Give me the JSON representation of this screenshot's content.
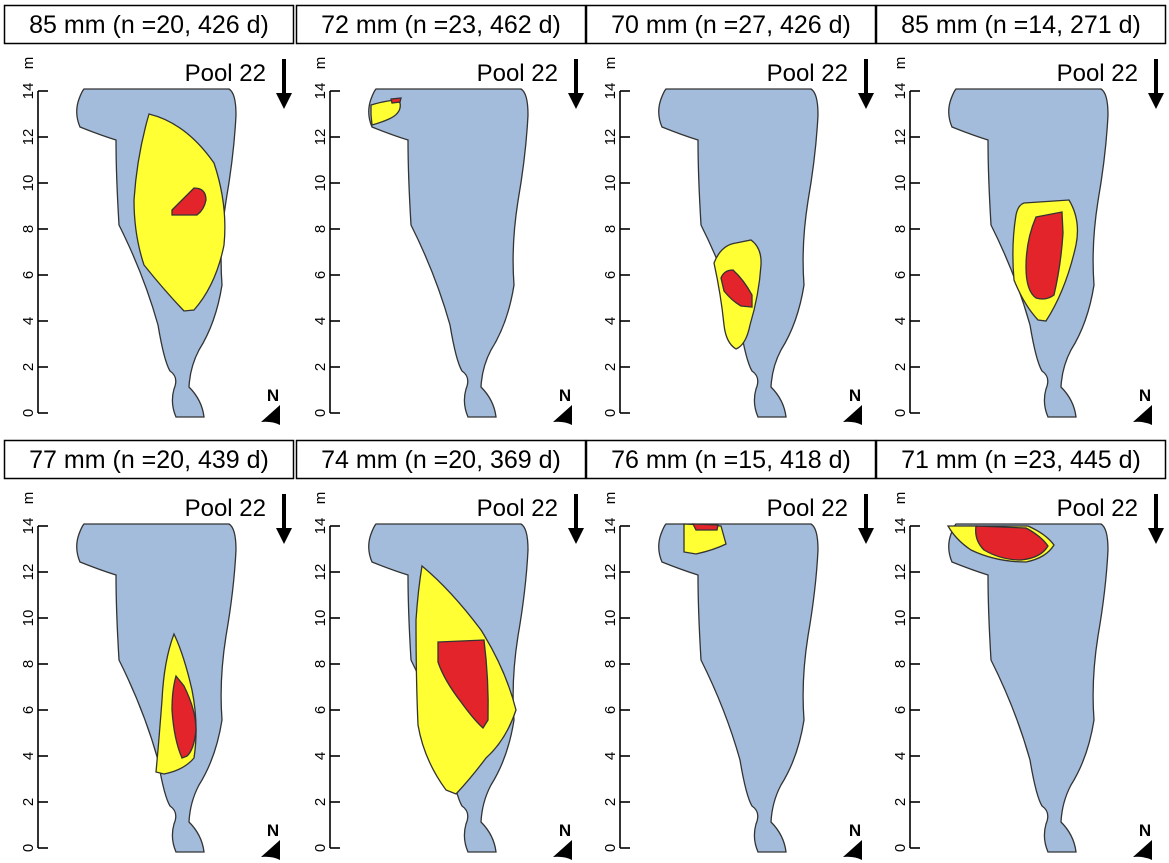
{
  "figure": {
    "y_axis_unit": "m",
    "y_axis_ticks": [
      "0",
      "2",
      "4",
      "6",
      "8",
      "10",
      "12",
      "14"
    ],
    "y_axis_range": [
      0,
      14
    ],
    "north_label": "N",
    "colors": {
      "pool": "#a3bcdb",
      "outer_zone": "#ffff33",
      "core_zone": "#e3242b",
      "outline": "#333333"
    },
    "icons": [
      "flow-direction-arrow-icon",
      "north-arrow-icon"
    ]
  },
  "panels": [
    {
      "caption": "85 mm (n =20, 426 d)",
      "pool_label": "Pool 22"
    },
    {
      "caption": "72 mm (n =23, 462 d)",
      "pool_label": "Pool 22"
    },
    {
      "caption": "70 mm (n =27, 426 d)",
      "pool_label": "Pool 22"
    },
    {
      "caption": "85 mm (n =14, 271 d)",
      "pool_label": "Pool 22"
    },
    {
      "caption": "77 mm (n =20, 439 d)",
      "pool_label": "Pool 22"
    },
    {
      "caption": "74 mm (n =20, 369 d)",
      "pool_label": "Pool 22"
    },
    {
      "caption": "76 mm (n =15, 418 d)",
      "pool_label": "Pool 22"
    },
    {
      "caption": "71 mm (n =23, 445 d)",
      "pool_label": "Pool 22"
    }
  ]
}
